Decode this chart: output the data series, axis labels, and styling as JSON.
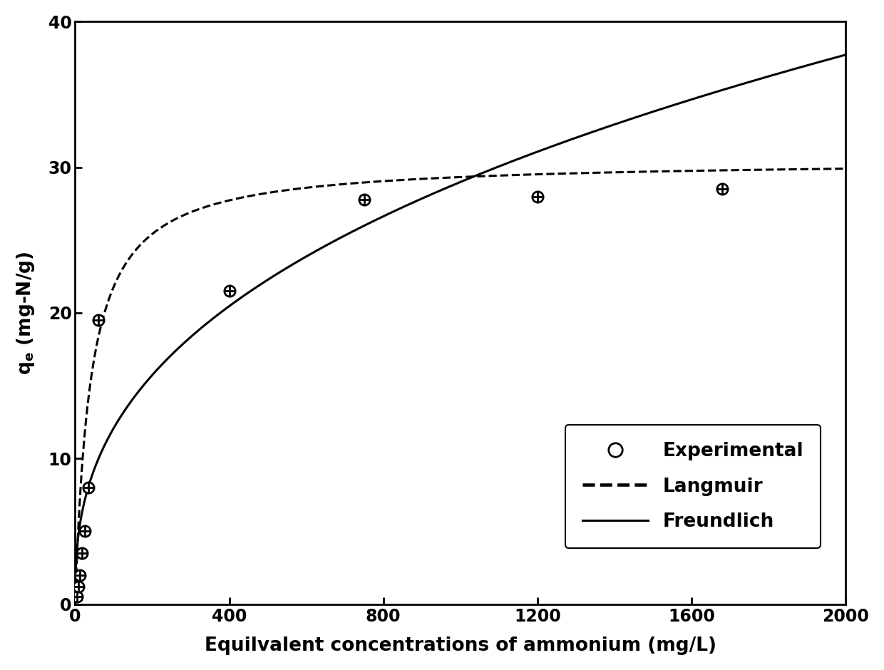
{
  "experimental_x": [
    5,
    8,
    12,
    18,
    25,
    35,
    60,
    400,
    750,
    1200,
    1680
  ],
  "experimental_y": [
    0.5,
    1.2,
    2.0,
    3.5,
    5.0,
    8.0,
    19.5,
    21.5,
    27.8,
    28.0,
    28.5
  ],
  "langmuir_qmax": 30.5,
  "langmuir_KL": 0.025,
  "freundlich_KF": 2.1,
  "freundlich_n": 0.38,
  "xlim": [
    0,
    2000
  ],
  "ylim": [
    0,
    40
  ],
  "xticks": [
    0,
    400,
    800,
    1200,
    1600,
    2000
  ],
  "yticks": [
    0,
    10,
    20,
    30,
    40
  ],
  "xlabel": "Equilvalent concentrations of ammonium (mg/L)",
  "ylabel": "q_e (mg-N/g)",
  "legend_labels": [
    "Experimental",
    "Langmuir",
    "Freundlich"
  ],
  "background_color": "#ffffff",
  "line_color": "#000000",
  "marker_size": 11,
  "line_width": 2.2
}
